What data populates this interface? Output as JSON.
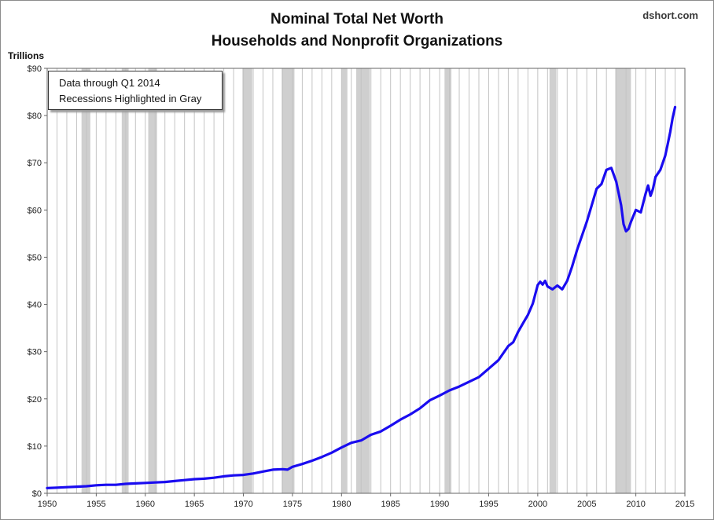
{
  "header": {
    "title_line1": "Nominal Total Net Worth",
    "title_line2": "Households and Nonprofit Organizations",
    "source": "dshort.com"
  },
  "annotation": {
    "line1": "Data through  Q1 2014",
    "line2": "Recessions Highlighted in Gray"
  },
  "chart_data": {
    "type": "line",
    "ylabel": "Trillions",
    "xlim": [
      1950,
      2015
    ],
    "ylim": [
      0,
      90
    ],
    "x_ticks": [
      1950,
      1955,
      1960,
      1965,
      1970,
      1975,
      1980,
      1985,
      1990,
      1995,
      2000,
      2005,
      2010,
      2015
    ],
    "x_tick_labels": [
      "1950",
      "1955",
      "1960",
      "1965",
      "1970",
      "1975",
      "1980",
      "1985",
      "1990",
      "1995",
      "2000",
      "2005",
      "2010",
      "2015"
    ],
    "y_ticks": [
      0,
      10,
      20,
      30,
      40,
      50,
      60,
      70,
      80,
      90
    ],
    "y_tick_labels": [
      "$0",
      "$10",
      "$20",
      "$30",
      "$40",
      "$50",
      "$60",
      "$70",
      "$80",
      "$90"
    ],
    "grid": "vertical",
    "line_color": "#1a0cf0",
    "recession_color": "#cfcfcf",
    "recessions": [
      [
        1953.5,
        1954.4
      ],
      [
        1957.6,
        1958.3
      ],
      [
        1960.3,
        1961.2
      ],
      [
        1969.9,
        1970.9
      ],
      [
        1973.9,
        1975.2
      ],
      [
        1980.0,
        1980.6
      ],
      [
        1981.5,
        1982.9
      ],
      [
        1990.5,
        1991.2
      ],
      [
        2001.2,
        2001.9
      ],
      [
        2007.9,
        2009.5
      ]
    ],
    "series": [
      {
        "x": [
          1950,
          1951,
          1952,
          1953,
          1954,
          1955,
          1956,
          1957,
          1958,
          1959,
          1960,
          1961,
          1962,
          1963,
          1964,
          1965,
          1966,
          1967,
          1968,
          1969,
          1970,
          1971,
          1972,
          1973,
          1974,
          1974.5,
          1975,
          1976,
          1977,
          1978,
          1979,
          1980,
          1981,
          1982,
          1983,
          1984,
          1985,
          1986,
          1987,
          1988,
          1989,
          1990,
          1991,
          1992,
          1993,
          1994,
          1995,
          1996,
          1997,
          1997.5,
          1998,
          1998.5,
          1999,
          1999.5,
          2000,
          2000.25,
          2000.5,
          2000.75,
          2001,
          2001.5,
          2002,
          2002.5,
          2003,
          2003.5,
          2004,
          2004.5,
          2005,
          2005.5,
          2006,
          2006.5,
          2007,
          2007.5,
          2008,
          2008.25,
          2008.5,
          2008.75,
          2009,
          2009.25,
          2009.5,
          2010,
          2010.5,
          2011,
          2011.25,
          2011.5,
          2011.75,
          2012,
          2012.5,
          2013,
          2013.25,
          2013.5,
          2013.75,
          2014
        ],
        "y": [
          1.1,
          1.2,
          1.3,
          1.4,
          1.5,
          1.7,
          1.8,
          1.8,
          2.0,
          2.1,
          2.2,
          2.3,
          2.4,
          2.6,
          2.8,
          3.0,
          3.1,
          3.3,
          3.6,
          3.8,
          3.9,
          4.2,
          4.6,
          5.0,
          5.1,
          5.0,
          5.6,
          6.2,
          6.9,
          7.7,
          8.6,
          9.7,
          10.7,
          11.2,
          12.4,
          13.1,
          14.3,
          15.6,
          16.7,
          18.0,
          19.7,
          20.7,
          21.8,
          22.6,
          23.6,
          24.6,
          26.4,
          28.2,
          31.2,
          32.0,
          34.2,
          36.0,
          37.8,
          40.2,
          44.1,
          44.8,
          44.2,
          45.0,
          43.8,
          43.2,
          44.0,
          43.2,
          45.0,
          48.0,
          51.5,
          54.5,
          57.5,
          61.0,
          64.5,
          65.5,
          68.5,
          68.9,
          66.0,
          63.5,
          61.0,
          57.0,
          55.5,
          56.0,
          57.5,
          60.0,
          59.5,
          63.5,
          65.2,
          63.0,
          64.5,
          67.0,
          68.5,
          71.5,
          74.0,
          76.5,
          79.5,
          81.8
        ]
      }
    ]
  }
}
